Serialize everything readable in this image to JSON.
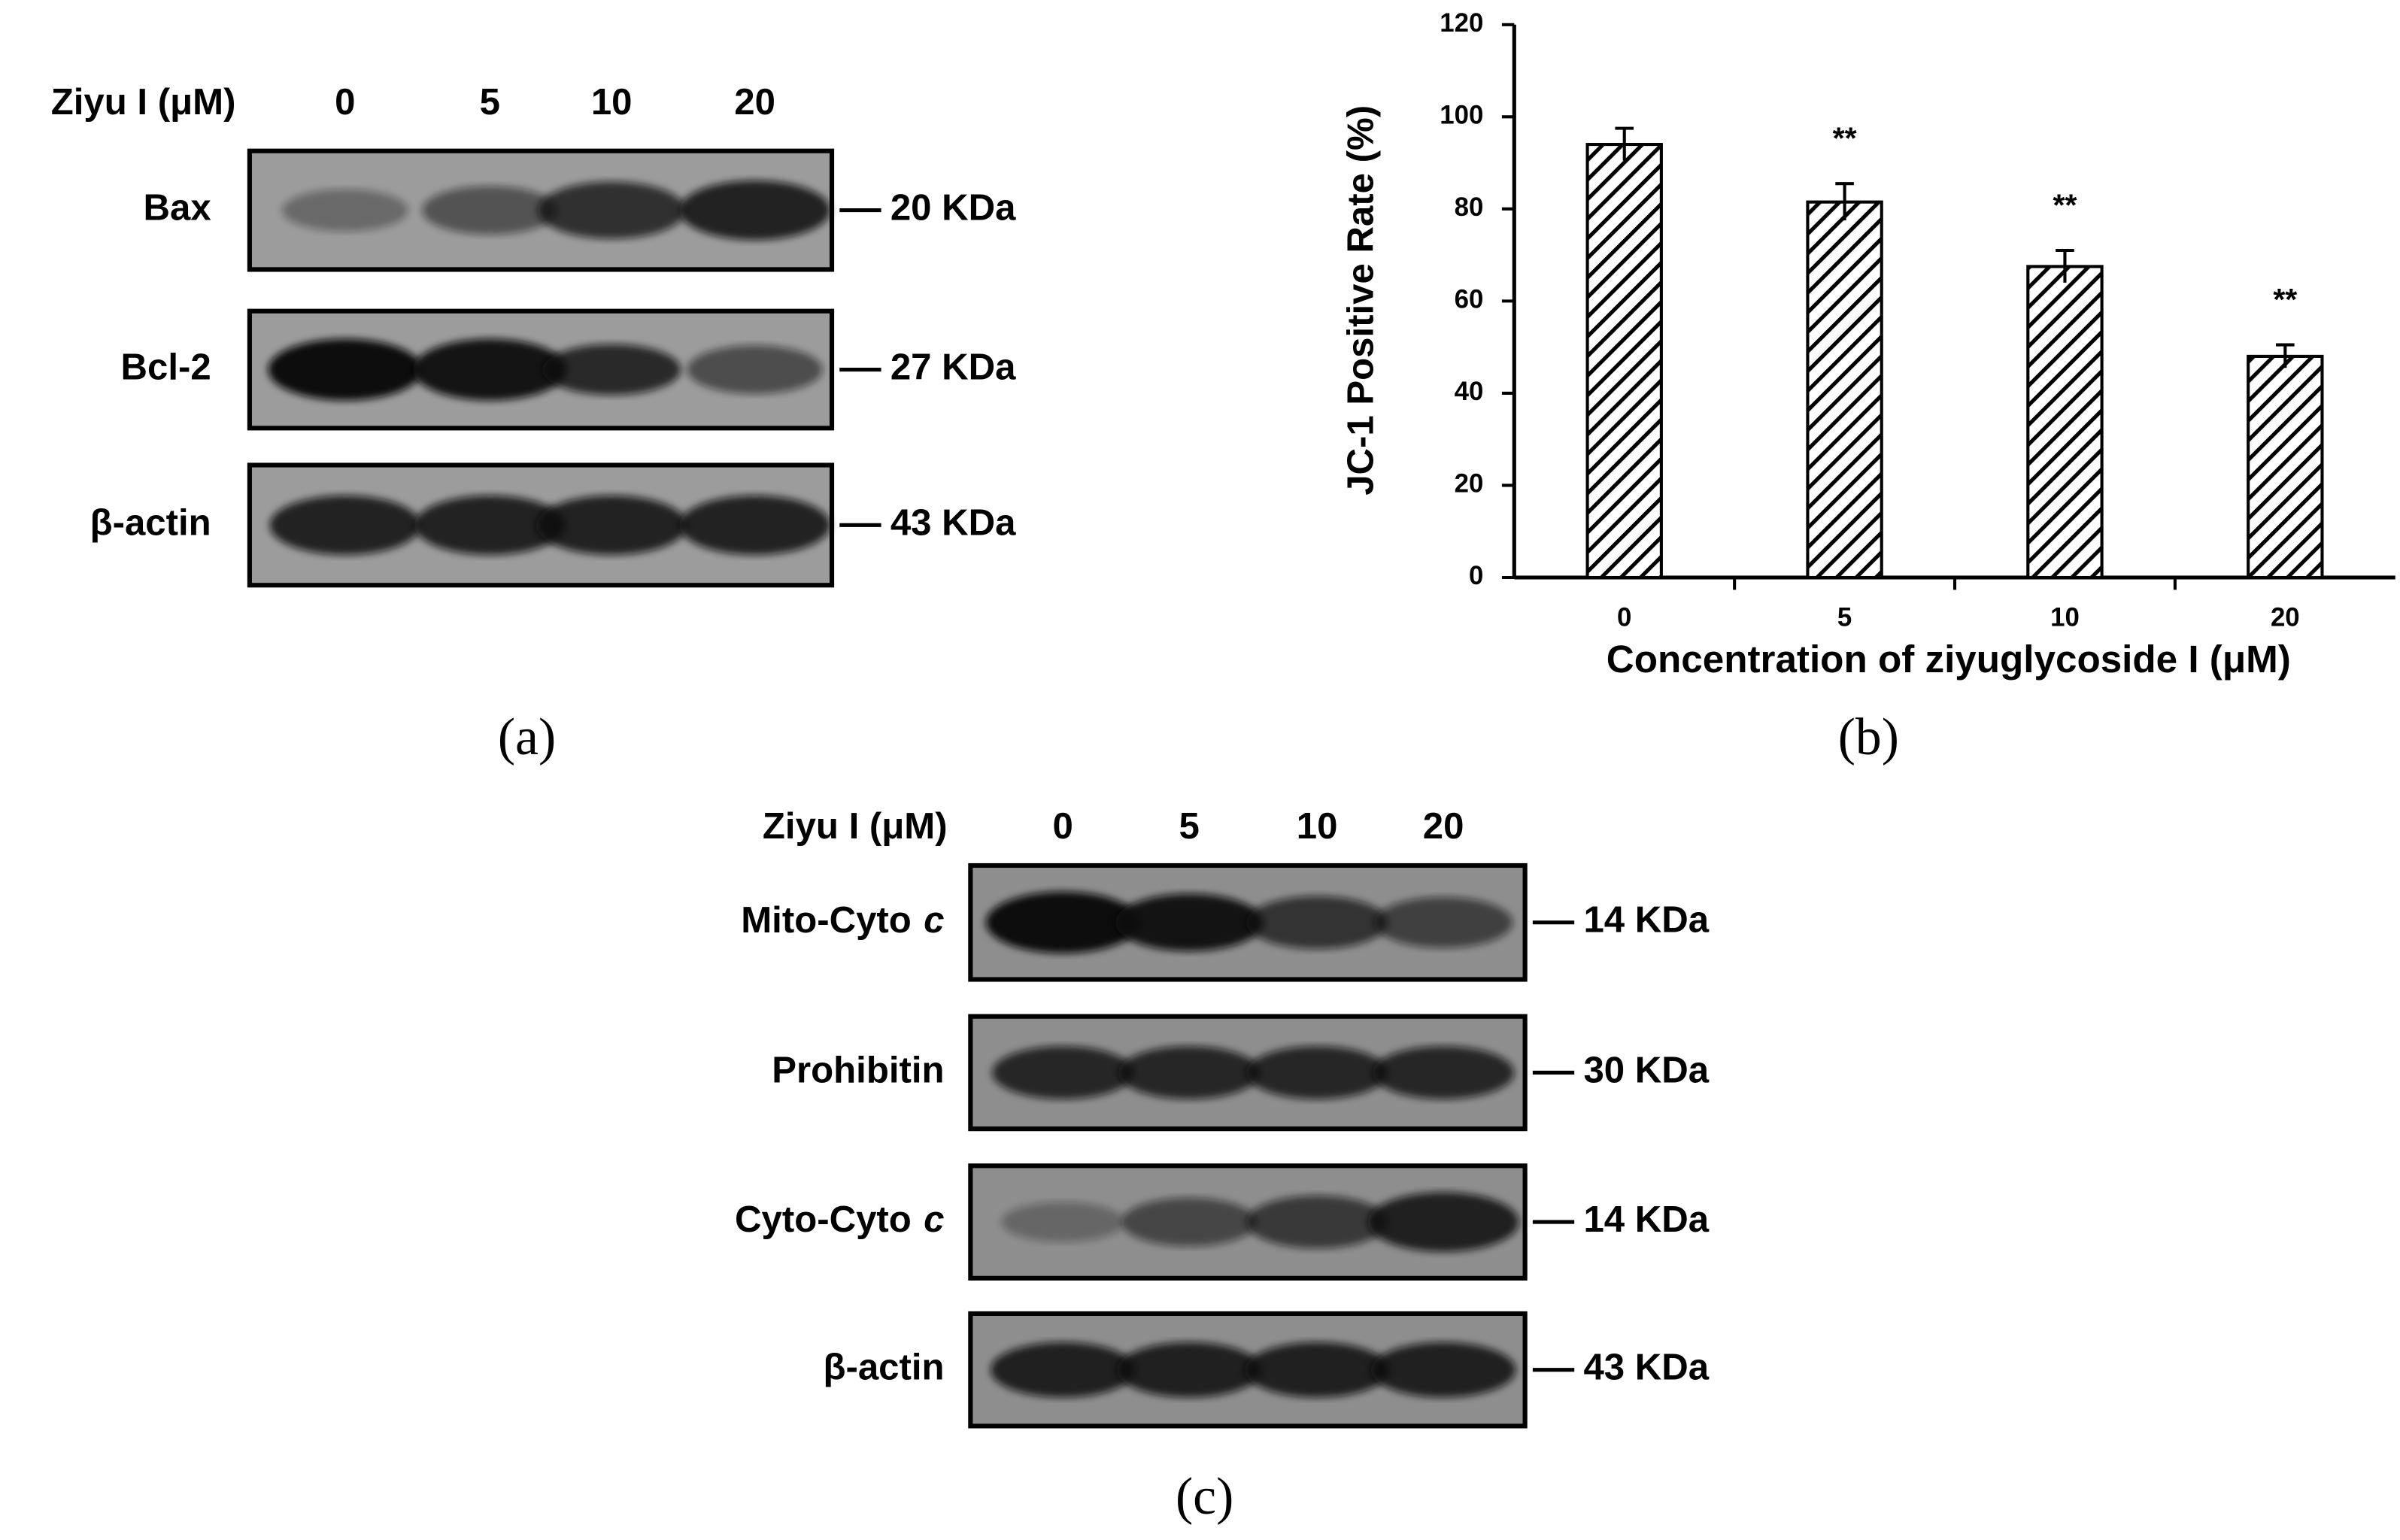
{
  "panel_a": {
    "caption": "(a)",
    "header": "Ziyu I (μM)",
    "lanes": [
      "0",
      "5",
      "10",
      "20"
    ],
    "rows": [
      {
        "label": "Bax",
        "size": "20 KDa"
      },
      {
        "label": "Bcl-2",
        "size": "27 KDa"
      },
      {
        "label": "β-actin",
        "size": "43 KDa"
      }
    ]
  },
  "chart_data": {
    "type": "bar",
    "caption": "(b)",
    "x_label": "Concentration of ziyuglycoside I (μM)",
    "y_label": "JC-1 Positive Rate (%)",
    "categories": [
      "0",
      "5",
      "10",
      "20"
    ],
    "values": [
      94,
      81.5,
      67.5,
      48
    ],
    "errors": [
      3.5,
      4,
      3.5,
      2.5
    ],
    "annotations": [
      {
        "category": "5",
        "text": "**"
      },
      {
        "category": "10",
        "text": "**"
      },
      {
        "category": "20",
        "text": "**"
      }
    ],
    "color": "#000000",
    "ylim": [
      0,
      120
    ],
    "yticks": [
      0,
      20,
      40,
      60,
      80,
      100,
      120
    ]
  },
  "panel_c": {
    "caption": "(c)",
    "header": "Ziyu I (μM)",
    "lanes": [
      "0",
      "5",
      "10",
      "20"
    ],
    "rows": [
      {
        "label": "Mito-Cyto",
        "label_italic": "c",
        "size": "14 KDa"
      },
      {
        "label": "Prohibitin",
        "size": "30 KDa"
      },
      {
        "label": "Cyto-Cyto",
        "label_italic": "c",
        "size": "14 KDa"
      },
      {
        "label": "β-actin",
        "size": "43 KDa"
      }
    ]
  }
}
